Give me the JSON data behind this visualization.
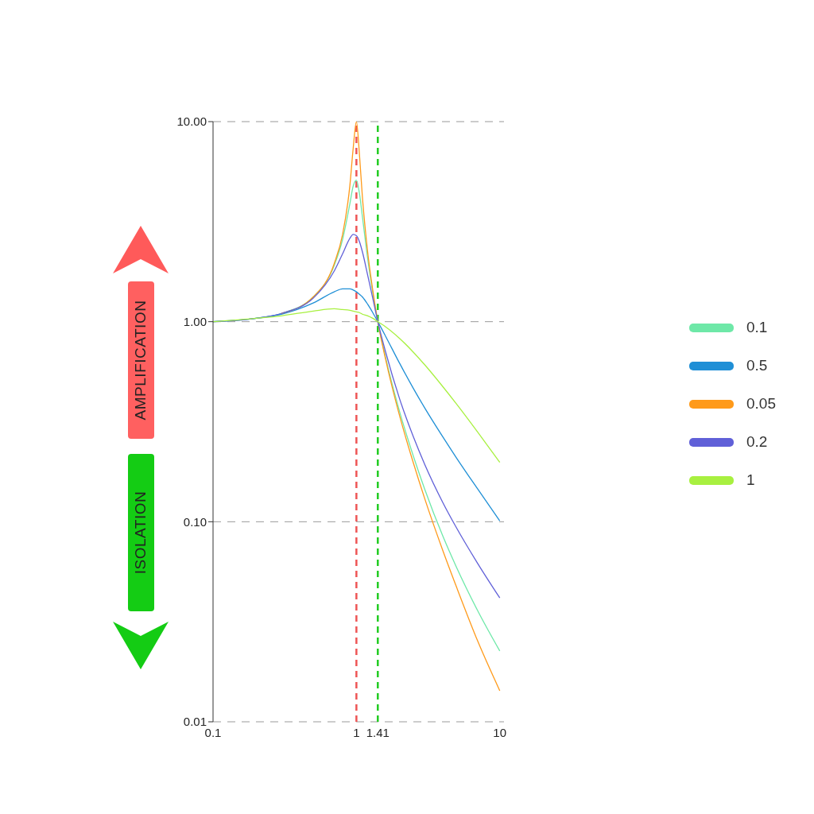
{
  "chart_data": {
    "type": "line",
    "x": [
      0.1,
      0.2,
      0.3,
      0.5,
      0.7,
      0.8,
      0.9,
      0.95,
      1,
      1.05,
      1.1,
      1.2,
      1.3,
      1.41,
      1.6,
      2,
      2.5,
      3,
      4,
      5,
      7,
      10
    ],
    "series": [
      {
        "name": "0.1",
        "color": "#6ee8a8",
        "values": [
          1,
          1.04,
          1.1,
          1.33,
          1.91,
          2.57,
          3.88,
          4.77,
          5.1,
          4.37,
          3.37,
          2.05,
          1.4,
          1,
          0.66,
          0.356,
          0.212,
          0.145,
          0.085,
          0.059,
          0.036,
          0.0226
        ]
      },
      {
        "name": "0.5",
        "color": "#1f8fd6",
        "values": [
          1,
          1.04,
          1.09,
          1.24,
          1.41,
          1.46,
          1.46,
          1.44,
          1.41,
          1.37,
          1.33,
          1.22,
          1.11,
          1,
          0.844,
          0.62,
          0.463,
          0.37,
          0.266,
          0.208,
          0.146,
          0.101
        ]
      },
      {
        "name": "0.05",
        "color": "#ff9a1a",
        "values": [
          null,
          null,
          1.1,
          1.33,
          1.95,
          2.72,
          4.78,
          7.38,
          10,
          6.86,
          4.24,
          2.21,
          1.44,
          1,
          0.646,
          0.339,
          0.196,
          0.13,
          0.072,
          0.047,
          0.0254,
          0.0143
        ]
      },
      {
        "name": "0.2",
        "color": "#6060d8",
        "values": [
          1,
          1.04,
          1.1,
          1.31,
          1.79,
          2.18,
          2.61,
          2.73,
          2.69,
          2.51,
          2.24,
          1.7,
          1.31,
          1,
          0.704,
          0.412,
          0.265,
          0.193,
          0.125,
          0.093,
          0.062,
          0.0416
        ]
      },
      {
        "name": "1",
        "color": "#a8f040",
        "values": [
          1,
          1.04,
          1.07,
          1.13,
          1.16,
          1.15,
          1.14,
          1.13,
          1.12,
          1.11,
          1.09,
          1.07,
          1.04,
          1,
          0.942,
          0.825,
          0.703,
          0.608,
          0.474,
          0.387,
          0.281,
          0.198
        ]
      }
    ],
    "log": "xy",
    "xlim": [
      0.1,
      10.7
    ],
    "xticks": [
      0.1,
      1,
      1.41,
      10
    ],
    "ylim": [
      0.01,
      10
    ],
    "yticks": [
      {
        "value": 0.01,
        "label": "0.01"
      },
      {
        "value": 0.1,
        "label": "0.10"
      },
      {
        "value": 1,
        "label": "1.00"
      },
      {
        "value": 10,
        "label": "10.00"
      }
    ],
    "grid": "y",
    "legend": "right",
    "marker": "none",
    "line_style": "solid",
    "ref_lines": [
      {
        "axis": "x",
        "value": 1,
        "label": null,
        "color": "#ee5555",
        "line_style": "dashed"
      },
      {
        "axis": "x",
        "value": 1.41,
        "label": null,
        "color": "#22cc22",
        "line_style": "dashed"
      }
    ],
    "annotations": [
      "AMPLIFICATION",
      "ISOLATION"
    ]
  }
}
